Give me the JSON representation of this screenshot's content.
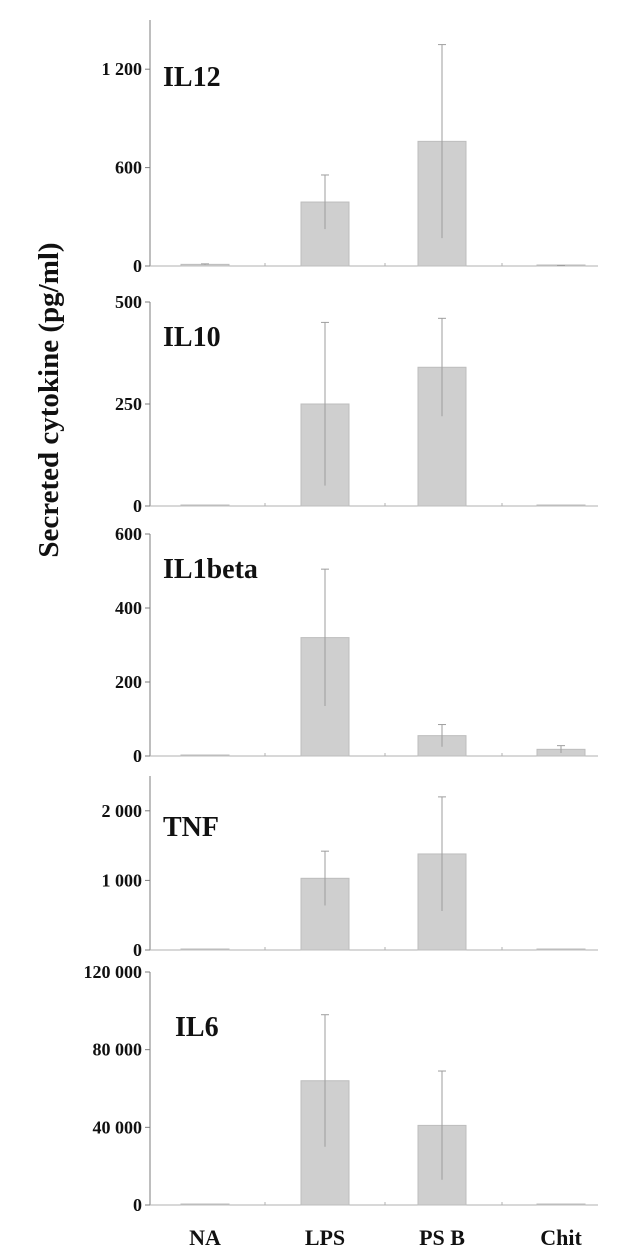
{
  "chart_data": {
    "type": "bar",
    "ylabel": "Secreted cytokine (pg/ml)",
    "categories": [
      "NA",
      "LPS",
      "PS B",
      "Chit"
    ],
    "panels": [
      {
        "title": "IL12",
        "ylim": [
          0,
          1500
        ],
        "ticks": [
          0,
          600,
          1200
        ],
        "tick_labels": [
          "0",
          "600",
          "1 200"
        ],
        "values": [
          10,
          390,
          760,
          2
        ],
        "errors": [
          3,
          165,
          590,
          1
        ]
      },
      {
        "title": "IL10",
        "ylim": [
          0,
          500
        ],
        "ticks": [
          0,
          250,
          500
        ],
        "tick_labels": [
          "0",
          "250",
          "500"
        ],
        "values": [
          0,
          250,
          340,
          0
        ],
        "errors": [
          0,
          200,
          120,
          0
        ]
      },
      {
        "title": "IL1beta",
        "ylim": [
          0,
          600
        ],
        "ticks": [
          0,
          200,
          400,
          600
        ],
        "tick_labels": [
          "0",
          "200",
          "400",
          "600"
        ],
        "values": [
          0,
          320,
          55,
          18
        ],
        "errors": [
          0,
          185,
          30,
          10
        ]
      },
      {
        "title": "TNF",
        "ylim": [
          0,
          2500
        ],
        "ticks": [
          0,
          1000,
          2000
        ],
        "tick_labels": [
          "0",
          "1 000",
          "2 000"
        ],
        "values": [
          0,
          1030,
          1380,
          0
        ],
        "errors": [
          0,
          390,
          820,
          0
        ]
      },
      {
        "title": "IL6",
        "ylim": [
          0,
          120000
        ],
        "ticks": [
          0,
          40000,
          80000,
          120000
        ],
        "tick_labels": [
          "0",
          "40 000",
          "80 000",
          "120 000"
        ],
        "values": [
          0,
          64000,
          41000,
          0
        ],
        "errors": [
          0,
          34000,
          28000,
          0
        ]
      }
    ]
  }
}
